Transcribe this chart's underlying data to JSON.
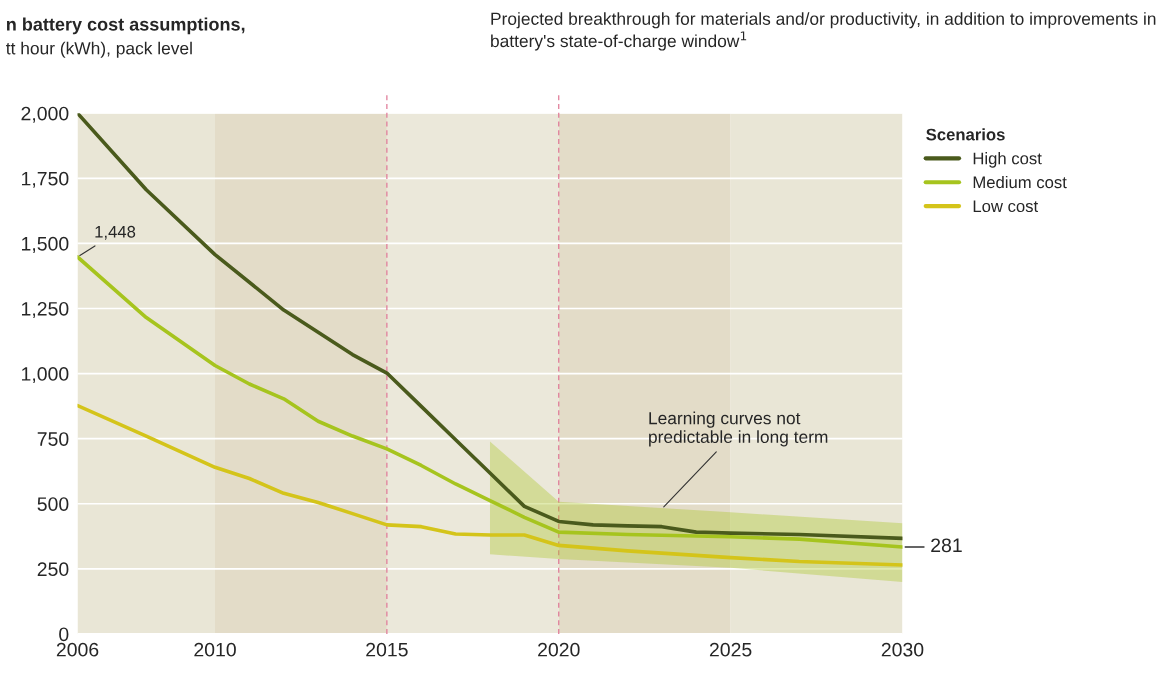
{
  "chart_data": {
    "type": "line",
    "title": "n battery cost assumptions,",
    "subtitle": "tt hour (kWh), pack level",
    "legend_title": "Scenarios",
    "x": [
      2006,
      2008,
      2010,
      2011,
      2012,
      2013,
      2014,
      2015,
      2016,
      2017,
      2018,
      2019,
      2020,
      2021,
      2022,
      2023,
      2024,
      2025,
      2027,
      2030
    ],
    "series": [
      {
        "name": "High cost",
        "color": "#4a5a1c",
        "values": [
          2000,
          1706,
          1457,
          null,
          1244,
          null,
          1073,
          1002,
          874,
          746,
          618,
          490,
          432,
          419,
          415,
          412,
          391,
          387,
          382,
          367
        ]
      },
      {
        "name": "Medium cost",
        "color": "#a6c41e",
        "values": [
          1448,
          1215,
          1031,
          960,
          903,
          817,
          760,
          711,
          647,
          576,
          512,
          448,
          391,
          null,
          382,
          null,
          null,
          373,
          364,
          334
        ],
        "value_labels": [
          "1,448",
          null,
          null,
          null,
          null,
          null,
          null,
          null,
          null,
          null,
          null,
          null,
          null,
          null,
          null,
          null,
          null,
          null,
          null,
          null
        ],
        "lower": [
          null,
          null,
          null,
          null,
          null,
          null,
          null,
          null,
          null,
          null,
          306,
          null,
          288,
          null,
          null,
          null,
          null,
          254,
          null,
          199
        ],
        "upper": [
          null,
          null,
          null,
          null,
          null,
          null,
          null,
          null,
          null,
          null,
          739,
          null,
          508,
          null,
          null,
          null,
          null,
          467,
          null,
          425
        ]
      },
      {
        "name": "Low cost",
        "color": "#d4c41a",
        "values": [
          877,
          760,
          640,
          597,
          540,
          505,
          462,
          419,
          412,
          384,
          380,
          380,
          340,
          null,
          319,
          null,
          null,
          293,
          278,
          265
        ]
      }
    ],
    "xlim": [
      2006,
      2030
    ],
    "ylim": [
      0,
      2000
    ],
    "xticks": [
      2006,
      2010,
      2015,
      2020,
      2025,
      2030
    ],
    "yticks": [
      {
        "value": 0,
        "label": "0"
      },
      {
        "value": 250,
        "label": "250"
      },
      {
        "value": 500,
        "label": "500"
      },
      {
        "value": 750,
        "label": "750"
      },
      {
        "value": 1000,
        "label": "1,000"
      },
      {
        "value": 1250,
        "label": "1,250"
      },
      {
        "value": 1500,
        "label": "1,500"
      },
      {
        "value": 1750,
        "label": "1,750"
      },
      {
        "value": 2000,
        "label": "2,000"
      }
    ],
    "bands": [
      {
        "axis": "x",
        "from": 2006,
        "to": 2010,
        "color": "#e9e6d6"
      },
      {
        "axis": "x",
        "from": 2010,
        "to": 2015,
        "color": "#e3dcc8"
      },
      {
        "axis": "x",
        "from": 2015,
        "to": 2020,
        "color": "#ebe8da"
      },
      {
        "axis": "x",
        "from": 2020,
        "to": 2025,
        "color": "#e3dcc8"
      },
      {
        "axis": "x",
        "from": 2025,
        "to": 2030,
        "color": "#e9e6d6"
      }
    ],
    "ref_lines": [
      {
        "axis": "x",
        "value": 2015,
        "color": "#e07b98",
        "line_style": "dashed"
      },
      {
        "axis": "x",
        "value": 2020,
        "color": "#e07b98",
        "line_style": "dashed"
      }
    ],
    "annotations": [
      "Projected breakthrough for materials and/or productivity, in addition to improvements in battery's state-of-charge window$^{1}$",
      {
        "text": "Learning curves not\npredictable in long term",
        "x": 2023,
        "y": 480
      },
      "281"
    ],
    "grid": "y",
    "legend": "top right",
    "marker": "none",
    "line_style": "solid"
  }
}
